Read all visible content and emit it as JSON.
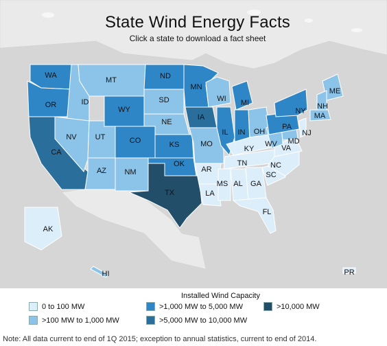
{
  "header": {
    "title": "State Wind Energy Facts",
    "subtitle": "Click a state to download a fact sheet"
  },
  "legend": {
    "title": "Installed Wind Capacity",
    "categories": [
      {
        "key": "c1",
        "label": "0 to 100 MW",
        "color": "#dceefa"
      },
      {
        "key": "c2",
        "label": ">100 MW to 1,000 MW",
        "color": "#8cc3e8"
      },
      {
        "key": "c3",
        "label": ">1,000 MW to 5,000 MW",
        "color": "#2e86c6"
      },
      {
        "key": "c4",
        "label": ">5,000 MW to 10,000 MW",
        "color": "#2a6f9c"
      },
      {
        "key": "c5",
        "label": ">10,000 MW",
        "color": "#234e6a"
      }
    ]
  },
  "colors": {
    "map_background": "#d6d6d6",
    "neighbors": "#eaeaea",
    "state_border": "#ffffff"
  },
  "states": [
    {
      "abbr": "WA",
      "cat": "c3"
    },
    {
      "abbr": "OR",
      "cat": "c3"
    },
    {
      "abbr": "CA",
      "cat": "c4"
    },
    {
      "abbr": "ID",
      "cat": "c2"
    },
    {
      "abbr": "NV",
      "cat": "c2"
    },
    {
      "abbr": "MT",
      "cat": "c2"
    },
    {
      "abbr": "WY",
      "cat": "c3"
    },
    {
      "abbr": "UT",
      "cat": "c2"
    },
    {
      "abbr": "AZ",
      "cat": "c2"
    },
    {
      "abbr": "CO",
      "cat": "c3"
    },
    {
      "abbr": "NM",
      "cat": "c2"
    },
    {
      "abbr": "ND",
      "cat": "c3"
    },
    {
      "abbr": "SD",
      "cat": "c2"
    },
    {
      "abbr": "NE",
      "cat": "c2"
    },
    {
      "abbr": "KS",
      "cat": "c3"
    },
    {
      "abbr": "OK",
      "cat": "c3"
    },
    {
      "abbr": "TX",
      "cat": "c5"
    },
    {
      "abbr": "MN",
      "cat": "c3"
    },
    {
      "abbr": "IA",
      "cat": "c4"
    },
    {
      "abbr": "MO",
      "cat": "c2"
    },
    {
      "abbr": "AR",
      "cat": "c1"
    },
    {
      "abbr": "LA",
      "cat": "c1"
    },
    {
      "abbr": "WI",
      "cat": "c2"
    },
    {
      "abbr": "IL",
      "cat": "c3"
    },
    {
      "abbr": "MI",
      "cat": "c3"
    },
    {
      "abbr": "IN",
      "cat": "c3"
    },
    {
      "abbr": "OH",
      "cat": "c2"
    },
    {
      "abbr": "KY",
      "cat": "c1"
    },
    {
      "abbr": "TN",
      "cat": "c1"
    },
    {
      "abbr": "MS",
      "cat": "c1"
    },
    {
      "abbr": "AL",
      "cat": "c1"
    },
    {
      "abbr": "GA",
      "cat": "c1"
    },
    {
      "abbr": "FL",
      "cat": "c1"
    },
    {
      "abbr": "SC",
      "cat": "c1"
    },
    {
      "abbr": "NC",
      "cat": "c1"
    },
    {
      "abbr": "VA",
      "cat": "c1"
    },
    {
      "abbr": "WV",
      "cat": "c2"
    },
    {
      "abbr": "MD",
      "cat": "c2"
    },
    {
      "abbr": "PA",
      "cat": "c3"
    },
    {
      "abbr": "NY",
      "cat": "c3"
    },
    {
      "abbr": "NJ",
      "cat": "c1"
    },
    {
      "abbr": "ME",
      "cat": "c2"
    },
    {
      "abbr": "NH",
      "cat": "c2"
    },
    {
      "abbr": "MA",
      "cat": "c2"
    },
    {
      "abbr": "AK",
      "cat": "c1"
    },
    {
      "abbr": "HI",
      "cat": "c2"
    },
    {
      "abbr": "PR",
      "cat": "c1"
    }
  ],
  "footnote": "Note: All data current to end of 1Q 2015; exception to annual statistics, current to end of 2014."
}
